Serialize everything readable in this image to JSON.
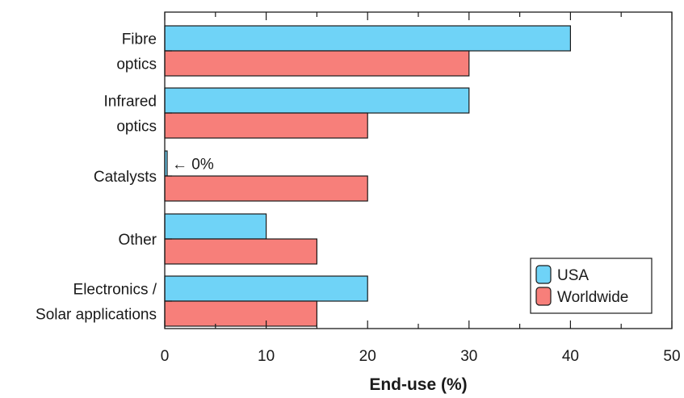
{
  "chart_data": {
    "type": "bar",
    "orientation": "horizontal",
    "categories": [
      [
        "Fibre",
        "optics"
      ],
      [
        "Infrared",
        "optics"
      ],
      [
        "Catalysts"
      ],
      [
        "Other"
      ],
      [
        "Electronics /",
        "Solar applications"
      ]
    ],
    "series": [
      {
        "name": "USA",
        "values": [
          40,
          30,
          0,
          10,
          20
        ],
        "color": "#6fd3f7"
      },
      {
        "name": "Worldwide",
        "values": [
          30,
          20,
          20,
          15,
          15
        ],
        "color": "#f77f7a"
      }
    ],
    "xlabel": "End-use (%)",
    "xlim": [
      0,
      50
    ],
    "xticks": [
      0,
      10,
      20,
      30,
      40,
      50
    ],
    "grid": false,
    "legend_position": "bottom-right",
    "annotation": {
      "text": "← 0%",
      "category_index": 2,
      "series": "USA"
    }
  }
}
